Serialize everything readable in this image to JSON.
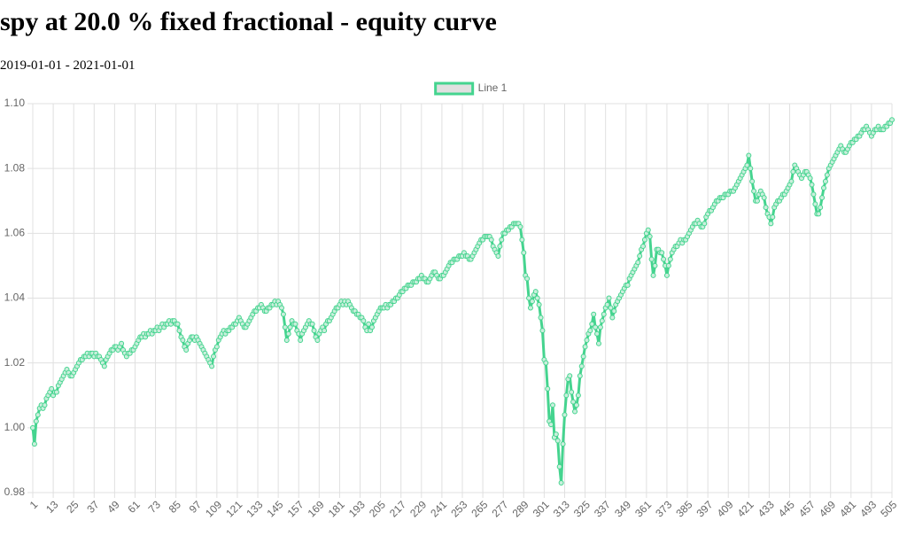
{
  "chart_data": {
    "type": "line",
    "title": "spy at 20.0 % fixed fractional - equity curve",
    "subtitle": "2019-01-01 - 2021-01-01",
    "legend": "top",
    "grid": true,
    "ylim": [
      0.98,
      1.1
    ],
    "yticks": [
      0.98,
      {
        "value": 1,
        "label": "1.00"
      },
      1.02,
      1.04,
      1.06,
      1.08,
      {
        "value": 1.1,
        "label": "1.10"
      }
    ],
    "categories": [
      "1",
      null,
      null,
      null,
      null,
      null,
      null,
      null,
      null,
      null,
      null,
      null,
      "13",
      null,
      null,
      null,
      null,
      null,
      null,
      null,
      null,
      null,
      null,
      null,
      "25",
      null,
      null,
      null,
      null,
      null,
      null,
      null,
      null,
      null,
      null,
      null,
      "37",
      null,
      null,
      null,
      null,
      null,
      null,
      null,
      null,
      null,
      null,
      null,
      "49",
      null,
      null,
      null,
      null,
      null,
      null,
      null,
      null,
      null,
      null,
      null,
      "61",
      null,
      null,
      null,
      null,
      null,
      null,
      null,
      null,
      null,
      null,
      null,
      "73",
      null,
      null,
      null,
      null,
      null,
      null,
      null,
      null,
      null,
      null,
      null,
      "85",
      null,
      null,
      null,
      null,
      null,
      null,
      null,
      null,
      null,
      null,
      null,
      "97",
      null,
      null,
      null,
      null,
      null,
      null,
      null,
      null,
      null,
      null,
      null,
      "109",
      null,
      null,
      null,
      null,
      null,
      null,
      null,
      null,
      null,
      null,
      null,
      "121",
      null,
      null,
      null,
      null,
      null,
      null,
      null,
      null,
      null,
      null,
      null,
      "133",
      null,
      null,
      null,
      null,
      null,
      null,
      null,
      null,
      null,
      null,
      null,
      "145",
      null,
      null,
      null,
      null,
      null,
      null,
      null,
      null,
      null,
      null,
      null,
      "157",
      null,
      null,
      null,
      null,
      null,
      null,
      null,
      null,
      null,
      null,
      null,
      "169",
      null,
      null,
      null,
      null,
      null,
      null,
      null,
      null,
      null,
      null,
      null,
      "181",
      null,
      null,
      null,
      null,
      null,
      null,
      null,
      null,
      null,
      null,
      null,
      "193",
      null,
      null,
      null,
      null,
      null,
      null,
      null,
      null,
      null,
      null,
      null,
      "205",
      null,
      null,
      null,
      null,
      null,
      null,
      null,
      null,
      null,
      null,
      null,
      "217",
      null,
      null,
      null,
      null,
      null,
      null,
      null,
      null,
      null,
      null,
      null,
      "229",
      null,
      null,
      null,
      null,
      null,
      null,
      null,
      null,
      null,
      null,
      null,
      "241",
      null,
      null,
      null,
      null,
      null,
      null,
      null,
      null,
      null,
      null,
      null,
      "253",
      null,
      null,
      null,
      null,
      null,
      null,
      null,
      null,
      null,
      null,
      null,
      "265",
      null,
      null,
      null,
      null,
      null,
      null,
      null,
      null,
      null,
      null,
      null,
      "277",
      null,
      null,
      null,
      null,
      null,
      null,
      null,
      null,
      null,
      null,
      null,
      "289",
      null,
      null,
      null,
      null,
      null,
      null,
      null,
      null,
      null,
      null,
      null,
      "301",
      null,
      null,
      null,
      null,
      null,
      null,
      null,
      null,
      null,
      null,
      null,
      "313",
      null,
      null,
      null,
      null,
      null,
      null,
      null,
      null,
      null,
      null,
      null,
      "325",
      null,
      null,
      null,
      null,
      null,
      null,
      null,
      null,
      null,
      null,
      null,
      "337",
      null,
      null,
      null,
      null,
      null,
      null,
      null,
      null,
      null,
      null,
      null,
      "349",
      null,
      null,
      null,
      null,
      null,
      null,
      null,
      null,
      null,
      null,
      null,
      "361",
      null,
      null,
      null,
      null,
      null,
      null,
      null,
      null,
      null,
      null,
      null,
      "373",
      null,
      null,
      null,
      null,
      null,
      null,
      null,
      null,
      null,
      null,
      null,
      "385",
      null,
      null,
      null,
      null,
      null,
      null,
      null,
      null,
      null,
      null,
      null,
      "397",
      null,
      null,
      null,
      null,
      null,
      null,
      null,
      null,
      null,
      null,
      null,
      "409",
      null,
      null,
      null,
      null,
      null,
      null,
      null,
      null,
      null,
      null,
      null,
      "421",
      null,
      null,
      null,
      null,
      null,
      null,
      null,
      null,
      null,
      null,
      null,
      "433",
      null,
      null,
      null,
      null,
      null,
      null,
      null,
      null,
      null,
      null,
      null,
      "445",
      null,
      null,
      null,
      null,
      null,
      null,
      null,
      null,
      null,
      null,
      null,
      "457",
      null,
      null,
      null,
      null,
      null,
      null,
      null,
      null,
      null,
      null,
      null,
      "469",
      null,
      null,
      null,
      null,
      null,
      null,
      null,
      null,
      null,
      null,
      null,
      "481",
      null,
      null,
      null,
      null,
      null,
      null,
      null,
      null,
      null,
      null,
      null,
      "493",
      null,
      null,
      null,
      null,
      null,
      null,
      null,
      null,
      null,
      null,
      null,
      "505"
    ],
    "series": [
      {
        "name": "Line 1",
        "color": "#45d48f",
        "values": [
          1.0,
          0.995,
          1.002,
          1.004,
          1.006,
          1.007,
          1.006,
          1.007,
          1.009,
          1.01,
          1.011,
          1.012,
          1.01,
          1.011,
          1.011,
          1.013,
          1.014,
          1.015,
          1.016,
          1.017,
          1.018,
          1.017,
          1.016,
          1.016,
          1.017,
          1.018,
          1.019,
          1.02,
          1.021,
          1.021,
          1.022,
          1.022,
          1.023,
          1.022,
          1.023,
          1.023,
          1.022,
          1.023,
          1.022,
          1.022,
          1.021,
          1.02,
          1.019,
          1.021,
          1.022,
          1.023,
          1.024,
          1.024,
          1.025,
          1.025,
          1.024,
          1.025,
          1.026,
          1.024,
          1.023,
          1.022,
          1.023,
          1.023,
          1.024,
          1.024,
          1.025,
          1.026,
          1.027,
          1.028,
          1.028,
          1.029,
          1.028,
          1.029,
          1.029,
          1.03,
          1.029,
          1.03,
          1.03,
          1.031,
          1.03,
          1.031,
          1.032,
          1.031,
          1.032,
          1.032,
          1.033,
          1.032,
          1.033,
          1.033,
          1.032,
          1.032,
          1.03,
          1.028,
          1.027,
          1.025,
          1.024,
          1.026,
          1.027,
          1.028,
          1.028,
          1.027,
          1.028,
          1.027,
          1.026,
          1.025,
          1.024,
          1.023,
          1.022,
          1.021,
          1.02,
          1.019,
          1.022,
          1.024,
          1.025,
          1.027,
          1.028,
          1.029,
          1.03,
          1.029,
          1.03,
          1.03,
          1.031,
          1.031,
          1.032,
          1.032,
          1.033,
          1.034,
          1.033,
          1.032,
          1.031,
          1.031,
          1.032,
          1.033,
          1.034,
          1.035,
          1.036,
          1.036,
          1.037,
          1.037,
          1.038,
          1.037,
          1.036,
          1.036,
          1.037,
          1.037,
          1.038,
          1.038,
          1.039,
          1.038,
          1.039,
          1.038,
          1.037,
          1.035,
          1.031,
          1.027,
          1.029,
          1.031,
          1.033,
          1.032,
          1.032,
          1.03,
          1.029,
          1.027,
          1.029,
          1.03,
          1.031,
          1.032,
          1.033,
          1.032,
          1.032,
          1.03,
          1.028,
          1.027,
          1.029,
          1.03,
          1.031,
          1.03,
          1.032,
          1.033,
          1.033,
          1.034,
          1.035,
          1.036,
          1.037,
          1.037,
          1.038,
          1.039,
          1.038,
          1.039,
          1.038,
          1.039,
          1.038,
          1.037,
          1.036,
          1.036,
          1.035,
          1.035,
          1.034,
          1.034,
          1.033,
          1.031,
          1.03,
          1.032,
          1.03,
          1.031,
          1.033,
          1.034,
          1.035,
          1.036,
          1.037,
          1.037,
          1.037,
          1.038,
          1.037,
          1.038,
          1.038,
          1.039,
          1.039,
          1.04,
          1.04,
          1.041,
          1.042,
          1.042,
          1.043,
          1.043,
          1.044,
          1.044,
          1.044,
          1.045,
          1.045,
          1.045,
          1.046,
          1.046,
          1.047,
          1.046,
          1.046,
          1.045,
          1.045,
          1.046,
          1.047,
          1.048,
          1.048,
          1.047,
          1.046,
          1.046,
          1.047,
          1.047,
          1.048,
          1.049,
          1.05,
          1.051,
          1.051,
          1.052,
          1.052,
          1.052,
          1.053,
          1.053,
          1.053,
          1.054,
          1.053,
          1.053,
          1.052,
          1.052,
          1.053,
          1.054,
          1.055,
          1.056,
          1.057,
          1.058,
          1.058,
          1.059,
          1.059,
          1.059,
          1.059,
          1.058,
          1.056,
          1.055,
          1.054,
          1.053,
          1.056,
          1.058,
          1.06,
          1.06,
          1.061,
          1.061,
          1.062,
          1.062,
          1.063,
          1.063,
          1.063,
          1.063,
          1.062,
          1.058,
          1.054,
          1.047,
          1.046,
          1.04,
          1.037,
          1.039,
          1.041,
          1.042,
          1.04,
          1.038,
          1.034,
          1.03,
          1.021,
          1.02,
          1.012,
          1.002,
          1.001,
          1.007,
          0.997,
          0.998,
          0.996,
          0.988,
          0.983,
          0.995,
          1.004,
          1.01,
          1.015,
          1.016,
          1.011,
          1.008,
          1.005,
          1.007,
          1.01,
          1.016,
          1.019,
          1.022,
          1.025,
          1.027,
          1.029,
          1.03,
          1.032,
          1.035,
          1.031,
          1.029,
          1.026,
          1.031,
          1.033,
          1.035,
          1.037,
          1.038,
          1.04,
          1.037,
          1.034,
          1.036,
          1.038,
          1.039,
          1.04,
          1.041,
          1.042,
          1.043,
          1.044,
          1.044,
          1.046,
          1.047,
          1.048,
          1.049,
          1.05,
          1.051,
          1.053,
          1.055,
          1.056,
          1.058,
          1.06,
          1.061,
          1.059,
          1.052,
          1.047,
          1.05,
          1.055,
          1.055,
          1.054,
          1.054,
          1.052,
          1.05,
          1.047,
          1.05,
          1.052,
          1.054,
          1.055,
          1.056,
          1.056,
          1.057,
          1.058,
          1.057,
          1.058,
          1.058,
          1.059,
          1.06,
          1.061,
          1.062,
          1.063,
          1.063,
          1.064,
          1.063,
          1.062,
          1.062,
          1.063,
          1.065,
          1.066,
          1.067,
          1.067,
          1.068,
          1.069,
          1.07,
          1.07,
          1.071,
          1.071,
          1.071,
          1.072,
          1.072,
          1.072,
          1.073,
          1.073,
          1.073,
          1.074,
          1.075,
          1.076,
          1.077,
          1.078,
          1.079,
          1.08,
          1.081,
          1.084,
          1.08,
          1.076,
          1.073,
          1.07,
          1.07,
          1.072,
          1.073,
          1.072,
          1.071,
          1.068,
          1.066,
          1.065,
          1.063,
          1.065,
          1.068,
          1.069,
          1.07,
          1.07,
          1.071,
          1.072,
          1.072,
          1.073,
          1.074,
          1.075,
          1.076,
          1.079,
          1.081,
          1.08,
          1.079,
          1.078,
          1.077,
          1.078,
          1.079,
          1.079,
          1.078,
          1.077,
          1.075,
          1.072,
          1.069,
          1.066,
          1.066,
          1.068,
          1.071,
          1.074,
          1.076,
          1.078,
          1.08,
          1.081,
          1.082,
          1.083,
          1.084,
          1.085,
          1.086,
          1.087,
          1.086,
          1.085,
          1.085,
          1.086,
          1.087,
          1.088,
          1.088,
          1.089,
          1.089,
          1.09,
          1.09,
          1.091,
          1.092,
          1.092,
          1.093,
          1.092,
          1.091,
          1.09,
          1.091,
          1.092,
          1.092,
          1.093,
          1.092,
          1.092,
          1.092,
          1.093,
          1.093,
          1.094,
          1.094,
          1.095
        ]
      }
    ]
  }
}
